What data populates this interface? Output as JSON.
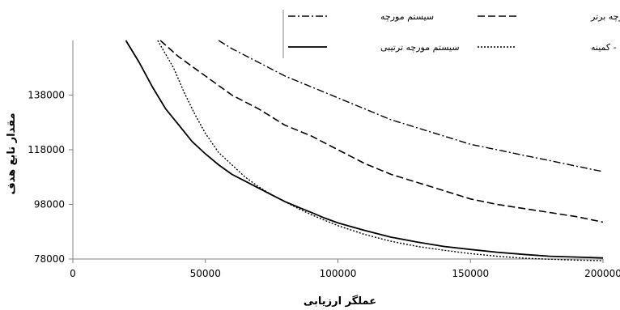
{
  "chart_data": {
    "type": "line",
    "xlabel": "عملگر ارزیابی",
    "ylabel": "مقدار تابع هدف",
    "xlim": [
      0,
      200000
    ],
    "ylim": [
      78000,
      158000
    ],
    "xticks": [
      "0",
      "50000",
      "100000",
      "150000",
      "200000"
    ],
    "yticks": [
      "78000",
      "98000",
      "118000",
      "138000"
    ],
    "xtick_values": [
      0,
      50000,
      100000,
      150000,
      200000
    ],
    "ytick_values": [
      78000,
      98000,
      118000,
      138000
    ],
    "legend_position": "top-right",
    "series": [
      {
        "name": "سیستم مورچه",
        "style": "dashdot",
        "points": [
          [
            55000,
            158000
          ],
          [
            60000,
            155000
          ],
          [
            70000,
            150000
          ],
          [
            80000,
            145000
          ],
          [
            90000,
            141000
          ],
          [
            100000,
            137000
          ],
          [
            110000,
            133000
          ],
          [
            120000,
            129000
          ],
          [
            130000,
            126000
          ],
          [
            140000,
            123000
          ],
          [
            150000,
            120000
          ],
          [
            160000,
            118000
          ],
          [
            170000,
            116000
          ],
          [
            180000,
            114000
          ],
          [
            190000,
            112000
          ],
          [
            200000,
            110000
          ]
        ]
      },
      {
        "name": "سیستم مورچه برتر",
        "style": "dashed",
        "points": [
          [
            33000,
            158000
          ],
          [
            40000,
            152000
          ],
          [
            50000,
            145000
          ],
          [
            60000,
            138000
          ],
          [
            70000,
            133000
          ],
          [
            80000,
            127000
          ],
          [
            90000,
            123000
          ],
          [
            100000,
            118000
          ],
          [
            110000,
            113000
          ],
          [
            120000,
            109000
          ],
          [
            130000,
            106000
          ],
          [
            140000,
            103000
          ],
          [
            150000,
            100000
          ],
          [
            160000,
            98000
          ],
          [
            170000,
            96500
          ],
          [
            180000,
            95000
          ],
          [
            190000,
            93500
          ],
          [
            200000,
            91500
          ]
        ]
      },
      {
        "name": "سیستم مورچه ترتیبی",
        "style": "solid",
        "points": [
          [
            20000,
            158000
          ],
          [
            25000,
            150000
          ],
          [
            30000,
            141000
          ],
          [
            35000,
            133000
          ],
          [
            40000,
            127000
          ],
          [
            45000,
            121000
          ],
          [
            50000,
            116500
          ],
          [
            55000,
            112500
          ],
          [
            60000,
            109000
          ],
          [
            65000,
            106500
          ],
          [
            70000,
            104000
          ],
          [
            75000,
            101500
          ],
          [
            80000,
            99000
          ],
          [
            85000,
            97000
          ],
          [
            90000,
            95000
          ],
          [
            95000,
            93000
          ],
          [
            100000,
            91200
          ],
          [
            110000,
            88500
          ],
          [
            120000,
            86000
          ],
          [
            130000,
            84200
          ],
          [
            140000,
            82600
          ],
          [
            150000,
            81500
          ],
          [
            160000,
            80500
          ],
          [
            170000,
            79700
          ],
          [
            180000,
            79000
          ],
          [
            190000,
            78700
          ],
          [
            200000,
            78400
          ]
        ]
      },
      {
        "name": "سیستم مورچه بیشینه - کمینه",
        "style": "dotted",
        "points": [
          [
            32000,
            158000
          ],
          [
            38000,
            148000
          ],
          [
            42000,
            139000
          ],
          [
            46000,
            131000
          ],
          [
            50000,
            124000
          ],
          [
            55000,
            117000
          ],
          [
            60000,
            112500
          ],
          [
            65000,
            108000
          ],
          [
            70000,
            104500
          ],
          [
            75000,
            101500
          ],
          [
            80000,
            99000
          ],
          [
            85000,
            96500
          ],
          [
            90000,
            94200
          ],
          [
            95000,
            92200
          ],
          [
            100000,
            90200
          ],
          [
            110000,
            87000
          ],
          [
            120000,
            84500
          ],
          [
            130000,
            82600
          ],
          [
            140000,
            81200
          ],
          [
            150000,
            80000
          ],
          [
            160000,
            79000
          ],
          [
            170000,
            78300
          ],
          [
            180000,
            77900
          ],
          [
            190000,
            77600
          ],
          [
            200000,
            77400
          ]
        ]
      }
    ]
  }
}
